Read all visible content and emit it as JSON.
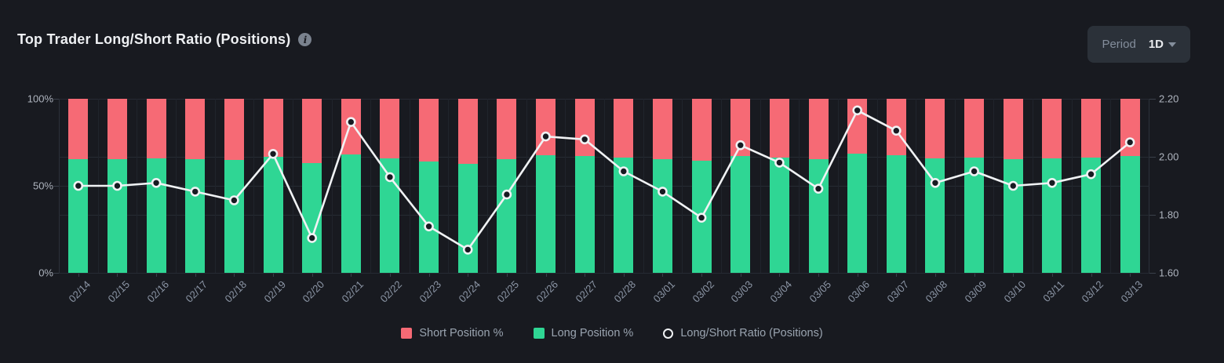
{
  "header": {
    "title": "Top Trader Long/Short Ratio (Positions)",
    "info_tooltip": "i"
  },
  "period": {
    "label": "Period",
    "value": "1D"
  },
  "legend": {
    "short": "Short Position %",
    "long": "Long Position %",
    "ratio": "Long/Short Ratio (Positions)"
  },
  "colors": {
    "background": "#181a20",
    "short_bar": "#f66a75",
    "long_bar": "#2fd694",
    "ratio_line": "#f0f2f4",
    "dot_fill": "#171a21",
    "grid": "#262b33",
    "axis_text": "#aeb4be",
    "date_text": "#8c96a6"
  },
  "chart_data": {
    "type": "bar",
    "subtype": "percent-stacked bars with line overlay on secondary axis",
    "title": "Top Trader Long/Short Ratio (Positions)",
    "categories": [
      "02/14",
      "02/15",
      "02/16",
      "02/17",
      "02/18",
      "02/19",
      "02/20",
      "02/21",
      "02/22",
      "02/23",
      "02/24",
      "02/25",
      "02/26",
      "02/27",
      "02/28",
      "03/01",
      "03/02",
      "03/03",
      "03/04",
      "03/05",
      "03/06",
      "03/07",
      "03/08",
      "03/09",
      "03/10",
      "03/11",
      "03/12",
      "03/13"
    ],
    "series": [
      {
        "name": "Long Position %",
        "type": "bar",
        "axis": "left",
        "color": "#2fd694",
        "values": [
          65.5,
          65.5,
          65.6,
          65.3,
          64.9,
          66.8,
          63.2,
          67.9,
          65.9,
          63.8,
          62.7,
          65.2,
          67.4,
          67.3,
          66.1,
          65.3,
          64.2,
          67.1,
          66.4,
          65.4,
          68.3,
          67.6,
          65.6,
          66.1,
          65.5,
          65.6,
          66.0,
          67.2
        ]
      },
      {
        "name": "Short Position %",
        "type": "bar",
        "axis": "left",
        "color": "#f66a75",
        "values": [
          34.5,
          34.5,
          34.4,
          34.7,
          35.1,
          33.2,
          36.8,
          32.1,
          34.1,
          36.2,
          37.3,
          34.8,
          32.6,
          32.7,
          33.9,
          34.7,
          35.8,
          32.9,
          33.6,
          34.6,
          31.7,
          32.4,
          34.4,
          33.9,
          34.5,
          34.4,
          34.0,
          32.8
        ]
      },
      {
        "name": "Long/Short Ratio (Positions)",
        "type": "line",
        "axis": "right",
        "color": "#f0f2f4",
        "values": [
          1.9,
          1.9,
          1.91,
          1.88,
          1.85,
          2.01,
          1.72,
          2.12,
          1.93,
          1.76,
          1.68,
          1.87,
          2.07,
          2.06,
          1.95,
          1.88,
          1.79,
          2.04,
          1.98,
          1.89,
          2.16,
          2.09,
          1.91,
          1.95,
          1.9,
          1.91,
          1.94,
          2.05
        ]
      }
    ],
    "left_axis": {
      "labels": [
        "100%",
        "50%",
        "0%"
      ],
      "min": 0,
      "max": 100
    },
    "right_axis": {
      "labels": [
        "2.20",
        "2.00",
        "1.80",
        "1.60"
      ],
      "min": 1.6,
      "max": 2.2
    },
    "grid": true,
    "legend_position": "bottom"
  }
}
